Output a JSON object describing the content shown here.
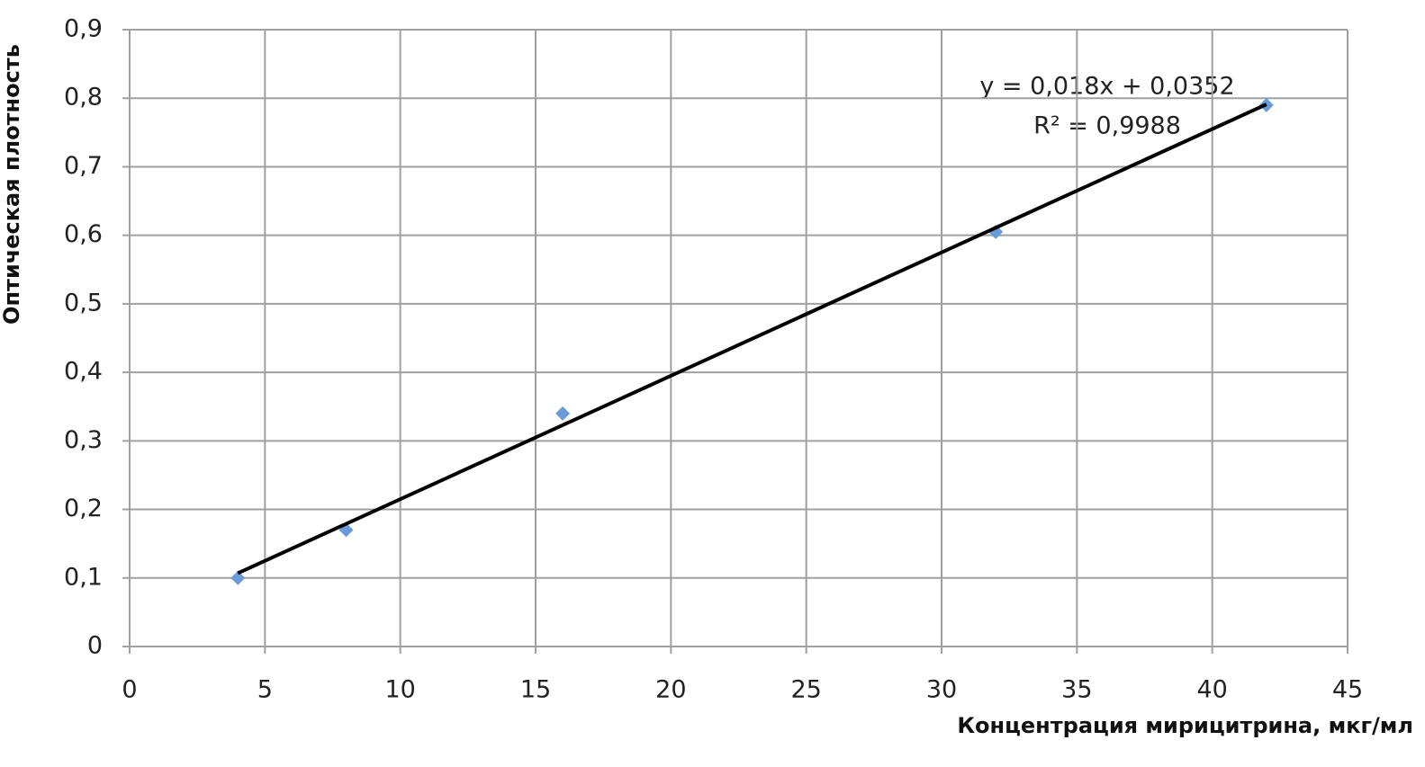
{
  "chart_data": {
    "type": "scatter",
    "xlabel": "Концентрация мирицитрина, мкг/мл",
    "ylabel": "Оптическая  плотность",
    "annotations": [
      "y = 0,018x + 0,0352",
      "R² = 0,9988"
    ],
    "series": [
      {
        "color": "#6a9bd8",
        "x": [
          4,
          8,
          16,
          32,
          42
        ],
        "values": [
          0.1,
          0.17,
          0.34,
          0.605,
          0.79
        ]
      }
    ],
    "trendline": {
      "color": "#000000",
      "x": [
        4,
        42
      ],
      "values": [
        0.107,
        0.791
      ]
    },
    "xlim": [
      0,
      45
    ],
    "xticks": [
      0,
      5,
      10,
      15,
      20,
      25,
      30,
      35,
      40,
      45
    ],
    "ylim": [
      0,
      0.9
    ],
    "yticks": [
      0,
      {
        "value": 0.1,
        "label": "0,1"
      },
      {
        "value": 0.2,
        "label": "0,2"
      },
      {
        "value": 0.3,
        "label": "0,3"
      },
      {
        "value": 0.4,
        "label": "0,4"
      },
      {
        "value": 0.5,
        "label": "0,5"
      },
      {
        "value": 0.6,
        "label": "0,6"
      },
      {
        "value": 0.7,
        "label": "0,7"
      },
      {
        "value": 0.8,
        "label": "0,8"
      },
      {
        "value": 0.9,
        "label": "0,9"
      }
    ],
    "grid": true
  }
}
